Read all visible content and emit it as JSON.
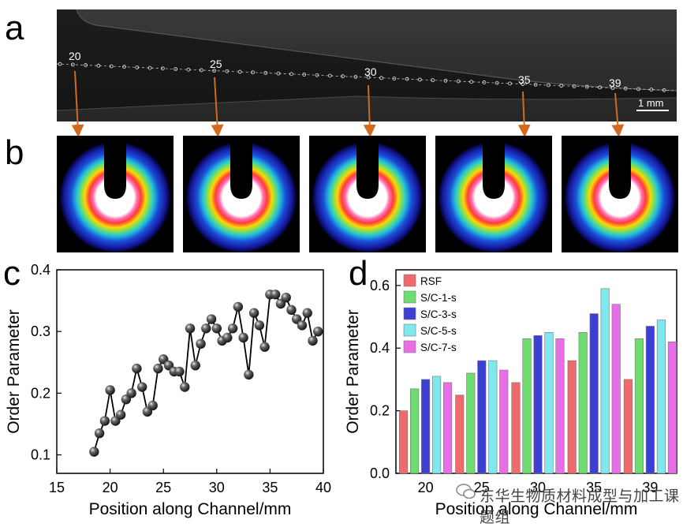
{
  "panel_labels": {
    "a": "a",
    "b": "b",
    "c": "c",
    "d": "d"
  },
  "panel_a": {
    "positions": [
      "20",
      "25",
      "30",
      "35",
      "39"
    ],
    "scale_bar": "1 mm"
  },
  "panel_b": {
    "patterns": [
      "20",
      "25",
      "30",
      "35",
      "39"
    ]
  },
  "watermark": "东华生物质材料成型与加工课题组",
  "colors": {
    "arrow": "#d2691e",
    "line": "#000000"
  },
  "chart_data": [
    {
      "type": "scatter",
      "panel": "c",
      "xlabel": "Position along Channel/mm",
      "ylabel": "Order Parameter",
      "xlim": [
        15,
        40
      ],
      "ylim": [
        0.07,
        0.4
      ],
      "xticks": [
        "15",
        "20",
        "25",
        "30",
        "35",
        "40"
      ],
      "yticks": [
        "0.1",
        "0.2",
        "0.3",
        "0.4"
      ],
      "series": [
        {
          "name": "Order Parameter",
          "x": [
            18.5,
            19.0,
            19.5,
            20.0,
            20.5,
            21.0,
            21.5,
            22.0,
            22.5,
            23.0,
            23.5,
            24.0,
            24.5,
            25.0,
            25.5,
            26.0,
            26.5,
            27.0,
            27.5,
            28.0,
            28.5,
            29.0,
            29.5,
            30.0,
            30.5,
            31.0,
            31.5,
            32.0,
            32.5,
            33.0,
            33.5,
            34.0,
            34.5,
            35.0,
            35.5,
            36.0,
            36.5,
            37.0,
            37.5,
            38.0,
            38.5,
            39.0,
            39.5
          ],
          "y": [
            0.105,
            0.135,
            0.155,
            0.205,
            0.155,
            0.165,
            0.19,
            0.2,
            0.24,
            0.21,
            0.17,
            0.18,
            0.24,
            0.255,
            0.245,
            0.235,
            0.235,
            0.21,
            0.305,
            0.245,
            0.28,
            0.305,
            0.32,
            0.305,
            0.285,
            0.29,
            0.305,
            0.34,
            0.29,
            0.23,
            0.33,
            0.31,
            0.275,
            0.36,
            0.36,
            0.345,
            0.355,
            0.335,
            0.32,
            0.31,
            0.33,
            0.285,
            0.3
          ]
        }
      ]
    },
    {
      "type": "bar",
      "panel": "d",
      "xlabel": "Position along Channel/mm",
      "ylabel": "Order Parameter",
      "ylim": [
        0,
        0.65
      ],
      "yticks": [
        "0.0",
        "0.2",
        "0.4",
        "0.6"
      ],
      "categories": [
        "20",
        "25",
        "30",
        "35",
        "39"
      ],
      "series": [
        {
          "name": "RSF",
          "color": "#ef6b6b",
          "values": [
            0.2,
            0.25,
            0.29,
            0.36,
            0.3
          ]
        },
        {
          "name": "S/C-1-s",
          "color": "#6edc6e",
          "values": [
            0.27,
            0.32,
            0.43,
            0.45,
            0.43
          ]
        },
        {
          "name": "S/C-3-s",
          "color": "#3d3fd4",
          "values": [
            0.3,
            0.36,
            0.44,
            0.51,
            0.47
          ]
        },
        {
          "name": "S/C-5-s",
          "color": "#7fe8ee",
          "values": [
            0.31,
            0.36,
            0.45,
            0.59,
            0.49
          ]
        },
        {
          "name": "S/C-7-s",
          "color": "#e86ee8",
          "values": [
            0.29,
            0.33,
            0.43,
            0.54,
            0.42
          ]
        }
      ]
    }
  ]
}
